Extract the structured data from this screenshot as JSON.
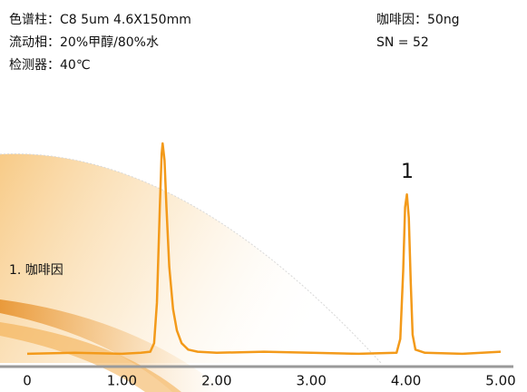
{
  "chart_data": {
    "type": "line",
    "header_left": [
      "色谱柱：C8 5um 4.6X150mm",
      "流动相：20%甲醇/80%水",
      "检测器：40℃"
    ],
    "header_right": [
      "咖啡因：50ng",
      "SN = 52"
    ],
    "peak_label": "1",
    "legend_note": "1. 咖啡因",
    "x": [
      0,
      0.5,
      1.0,
      1.2,
      1.3,
      1.34,
      1.37,
      1.4,
      1.42,
      1.43,
      1.45,
      1.47,
      1.5,
      1.54,
      1.58,
      1.63,
      1.7,
      1.8,
      2.0,
      2.5,
      3.0,
      3.5,
      3.9,
      3.94,
      3.97,
      3.99,
      4.01,
      4.03,
      4.05,
      4.07,
      4.1,
      4.2,
      4.6,
      5.0
    ],
    "series": [
      {
        "color": "#f39a1a",
        "values": [
          1,
          1.5,
          1,
          1.5,
          2,
          6,
          25,
          70,
          95,
          100,
          92,
          70,
          42,
          22,
          12,
          6,
          3,
          2,
          1.5,
          2,
          1.5,
          1,
          1.5,
          8,
          40,
          70,
          76,
          65,
          35,
          10,
          3,
          1.5,
          1,
          2
        ]
      }
    ],
    "xlim": [
      0,
      5
    ],
    "xticks": [
      0,
      {
        "value": 1,
        "label": "1.00"
      },
      {
        "value": 2,
        "label": "2.00"
      },
      {
        "value": 3,
        "label": "3.00"
      },
      {
        "value": 4,
        "label": "4.00"
      },
      {
        "value": 5,
        "label": "5.00"
      }
    ],
    "ylim": [
      -5,
      100
    ]
  }
}
